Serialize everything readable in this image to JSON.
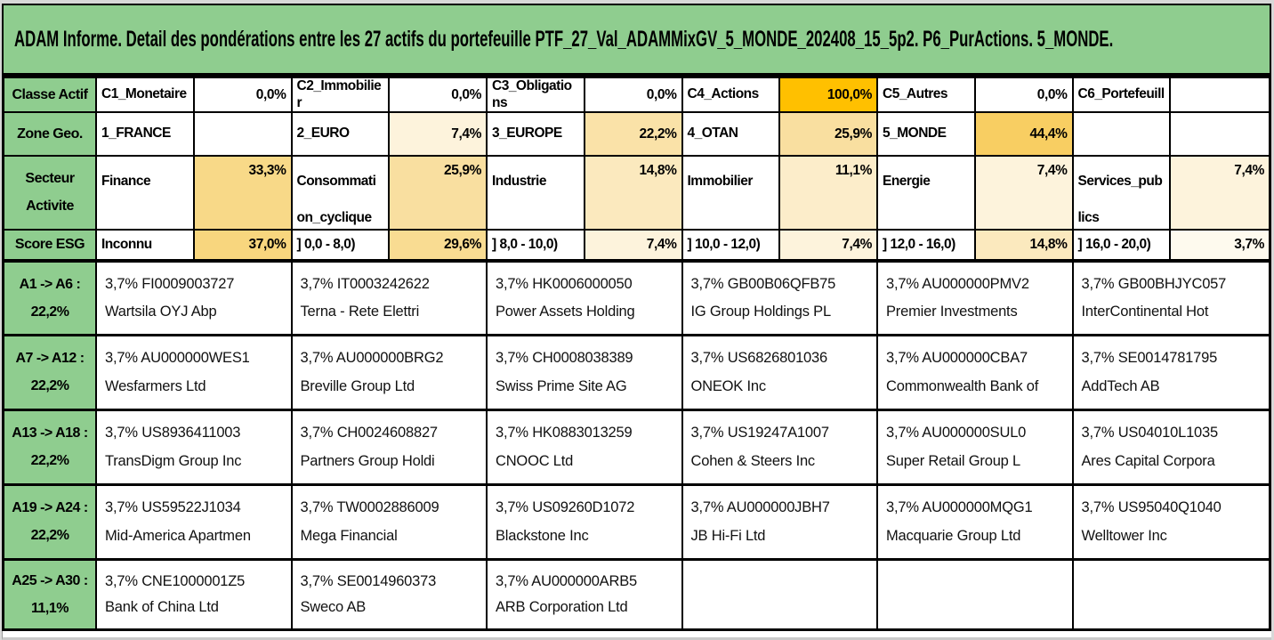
{
  "title": "ADAM Informe. Detail des pondérations entre les 27 actifs du portefeuille PTF_27_Val_ADAMMixGV_5_MONDE_202408_15_5p2. P6_PurActions. 5_MONDE.",
  "colors": {
    "header_green": "#8FCD8F",
    "grid_line": "#000000",
    "heat_max_orange": "#FFC000",
    "outer_edge_gray": "#D8D8D8"
  },
  "summary_rows": [
    {
      "id": "classe-actif",
      "label_line1": "Classe Actif",
      "label_line2": "",
      "cells": [
        {
          "name": "C1_Monetaire",
          "value": "0,0%",
          "value_bg": "#FFFFFF"
        },
        {
          "name": "C2_Immobilier",
          "value": "0,0%",
          "value_bg": "#FFFFFF"
        },
        {
          "name": "C3_Obligations",
          "value": "0,0%",
          "value_bg": "#FFFFFF"
        },
        {
          "name": "C4_Actions",
          "value": "100,0%",
          "value_bg": "#FFC000"
        },
        {
          "name": "C5_Autres",
          "value": "0,0%",
          "value_bg": "#FFFFFF"
        },
        {
          "name": "C6_Portefeuill",
          "value": "",
          "value_bg": "#FFFFFF"
        }
      ]
    },
    {
      "id": "zone-geo",
      "label_line1": "Zone Geo.",
      "label_line2": "",
      "cells": [
        {
          "name": "1_FRANCE",
          "value": "",
          "value_bg": "#FFFFFF"
        },
        {
          "name": "2_EURO",
          "value": "7,4%",
          "value_bg": "#FDF3DC"
        },
        {
          "name": "3_EUROPE",
          "value": "22,2%",
          "value_bg": "#FAE2A8"
        },
        {
          "name": "4_OTAN",
          "value": "25,9%",
          "value_bg": "#F9DFA0"
        },
        {
          "name": "5_MONDE",
          "value": "44,4%",
          "value_bg": "#F8CE62"
        },
        {
          "name": "",
          "value": "",
          "value_bg": "#FFFFFF"
        }
      ]
    },
    {
      "id": "secteur-activite",
      "label_line1": "Secteur",
      "label_line2": "Activite",
      "cells": [
        {
          "name": "Finance",
          "value": "33,3%",
          "value_bg": "#F8D988"
        },
        {
          "name": "Consommation_cyclique",
          "value": "25,9%",
          "value_bg": "#F9DFA0"
        },
        {
          "name": "Industrie",
          "value": "14,8%",
          "value_bg": "#FBE9BE"
        },
        {
          "name": "Immobilier",
          "value": "11,1%",
          "value_bg": "#FCEDCA"
        },
        {
          "name": "Energie",
          "value": "7,4%",
          "value_bg": "#FDF3DC"
        },
        {
          "name": "Services_publics",
          "value": "7,4%",
          "value_bg": "#FDF3DC"
        }
      ]
    },
    {
      "id": "score-esg",
      "label_line1": "Score ESG",
      "label_line2": "",
      "cells": [
        {
          "name": "Inconnu",
          "value": "37,0%",
          "value_bg": "#F8D67E"
        },
        {
          "name": "] 0,0 - 8,0)",
          "value": "29,6%",
          "value_bg": "#F9DC92"
        },
        {
          "name": "] 8,0 - 10,0)",
          "value": "7,4%",
          "value_bg": "#FDF3DC"
        },
        {
          "name": "] 10,0 - 12,0)",
          "value": "7,4%",
          "value_bg": "#FDF3DC"
        },
        {
          "name": "] 12,0 - 16,0)",
          "value": "14,8%",
          "value_bg": "#FBE9BE"
        },
        {
          "name": "] 16,0 - 20,0)",
          "value": "3,7%",
          "value_bg": "#FEFAEE"
        }
      ]
    }
  ],
  "asset_rows": [
    {
      "id": "a1-a6",
      "label_line1": "A1 -> A6 :",
      "label_line2": "22,2%",
      "assets": [
        {
          "weight": "3,7%",
          "isin": "FI0009003727",
          "name": "Wartsila OYJ Abp"
        },
        {
          "weight": "3,7%",
          "isin": "IT0003242622",
          "name": "Terna - Rete Elettri"
        },
        {
          "weight": "3,7%",
          "isin": "HK0006000050",
          "name": "Power Assets Holding"
        },
        {
          "weight": "3,7%",
          "isin": "GB00B06QFB75",
          "name": "IG Group Holdings PL"
        },
        {
          "weight": "3,7%",
          "isin": "AU000000PMV2",
          "name": "Premier Investments"
        },
        {
          "weight": "3,7%",
          "isin": "GB00BHJYC057",
          "name": "InterContinental Hot"
        }
      ]
    },
    {
      "id": "a7-a12",
      "label_line1": "A7 -> A12 :",
      "label_line2": "22,2%",
      "assets": [
        {
          "weight": "3,7%",
          "isin": "AU000000WES1",
          "name": "Wesfarmers Ltd"
        },
        {
          "weight": "3,7%",
          "isin": "AU000000BRG2",
          "name": "Breville Group Ltd"
        },
        {
          "weight": "3,7%",
          "isin": "CH0008038389",
          "name": "Swiss Prime Site AG"
        },
        {
          "weight": "3,7%",
          "isin": "US6826801036",
          "name": "ONEOK Inc"
        },
        {
          "weight": "3,7%",
          "isin": "AU000000CBA7",
          "name": "Commonwealth Bank of"
        },
        {
          "weight": "3,7%",
          "isin": "SE0014781795",
          "name": "AddTech AB"
        }
      ]
    },
    {
      "id": "a13-a18",
      "label_line1": "A13 -> A18 :",
      "label_line2": "22,2%",
      "assets": [
        {
          "weight": "3,7%",
          "isin": "US8936411003",
          "name": "TransDigm Group Inc"
        },
        {
          "weight": "3,7%",
          "isin": "CH0024608827",
          "name": "Partners Group Holdi"
        },
        {
          "weight": "3,7%",
          "isin": "HK0883013259",
          "name": "CNOOC Ltd"
        },
        {
          "weight": "3,7%",
          "isin": "US19247A1007",
          "name": "Cohen & Steers Inc"
        },
        {
          "weight": "3,7%",
          "isin": "AU000000SUL0",
          "name": "Super Retail Group L"
        },
        {
          "weight": "3,7%",
          "isin": "US04010L1035",
          "name": "Ares Capital Corpora"
        }
      ]
    },
    {
      "id": "a19-a24",
      "label_line1": "A19 -> A24 :",
      "label_line2": "22,2%",
      "assets": [
        {
          "weight": "3,7%",
          "isin": "US59522J1034",
          "name": "Mid-America Apartmen"
        },
        {
          "weight": "3,7%",
          "isin": "TW0002886009",
          "name": "Mega Financial"
        },
        {
          "weight": "3,7%",
          "isin": "US09260D1072",
          "name": "Blackstone Inc"
        },
        {
          "weight": "3,7%",
          "isin": "AU000000JBH7",
          "name": "JB Hi-Fi Ltd"
        },
        {
          "weight": "3,7%",
          "isin": "AU000000MQG1",
          "name": "Macquarie Group Ltd"
        },
        {
          "weight": "3,7%",
          "isin": "US95040Q1040",
          "name": "Welltower Inc"
        }
      ]
    },
    {
      "id": "a25-a30",
      "label_line1": "A25 -> A30 :",
      "label_line2": "11,1%",
      "assets": [
        {
          "weight": "3,7%",
          "isin": "CNE1000001Z5",
          "name": "Bank of China Ltd"
        },
        {
          "weight": "3,7%",
          "isin": "SE0014960373",
          "name": "Sweco AB"
        },
        {
          "weight": "3,7%",
          "isin": "AU000000ARB5",
          "name": "ARB Corporation Ltd"
        },
        null,
        null,
        null
      ]
    }
  ]
}
